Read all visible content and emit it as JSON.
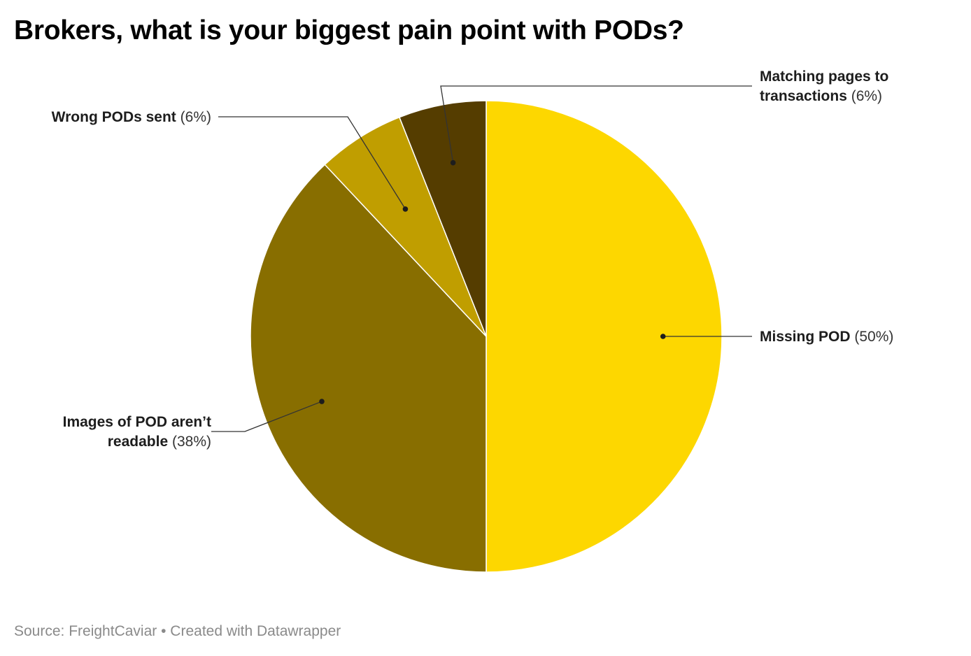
{
  "title": "Brokers, what is your biggest pain point with PODs?",
  "chart_data": {
    "type": "pie",
    "title": "Brokers, what is your biggest pain point with PODs?",
    "legend": "none (direct labels)",
    "slices": [
      {
        "label": "Missing POD",
        "value": 50,
        "pct_text": "(50%)",
        "color": "#FDD700"
      },
      {
        "label": "Images of POD aren’t readable",
        "value": 38,
        "pct_text": "(38%)",
        "color": "#886E00"
      },
      {
        "label": "Wrong PODs sent",
        "value": 6,
        "pct_text": "(6%)",
        "color": "#C09E00"
      },
      {
        "label": "Matching pages to transactions",
        "value": 6,
        "pct_text": "(6%)",
        "color": "#553D00"
      }
    ]
  },
  "footer": {
    "source": "Source: FreightCaviar",
    "separator": "•",
    "credit": "Created with Datawrapper"
  }
}
